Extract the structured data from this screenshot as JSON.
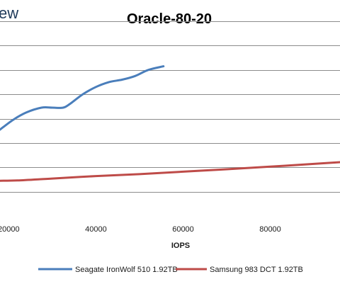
{
  "brand_fragment": "ew",
  "chart_data": {
    "type": "line",
    "title": "Oracle-80-20",
    "xlabel": "IOPS",
    "ylabel": "",
    "x_ticks": [
      "20000",
      "40000",
      "60000",
      "80000"
    ],
    "x_tick_values": [
      20000,
      40000,
      60000,
      80000
    ],
    "xlim": [
      18000,
      96000
    ],
    "ylim": [
      0,
      80
    ],
    "y_gridlines": [
      10,
      20,
      30,
      40,
      50,
      60,
      70,
      80
    ],
    "grid": true,
    "legend_position": "bottom",
    "series": [
      {
        "name": "Seagate IronWolf 510 1.92TB",
        "color": "#4a7ebb",
        "x": [
          18000,
          21000,
          24000,
          27500,
          30000,
          32500,
          34000,
          37000,
          40000,
          43000,
          46000,
          49000,
          52000,
          55500
        ],
        "y": [
          35.5,
          39.5,
          42.5,
          44.5,
          44.5,
          44.5,
          46,
          50,
          53,
          55,
          56,
          57.5,
          60,
          61.5
        ]
      },
      {
        "name": "Samsung 983 DCT 1.92TB",
        "color": "#be4b48",
        "x": [
          18000,
          22000,
          30000,
          40000,
          50000,
          60000,
          70000,
          80000,
          90000,
          96000
        ],
        "y": [
          14.5,
          14.6,
          15.4,
          16.4,
          17.2,
          18.2,
          19.2,
          20.3,
          21.4,
          22.1
        ]
      }
    ]
  }
}
